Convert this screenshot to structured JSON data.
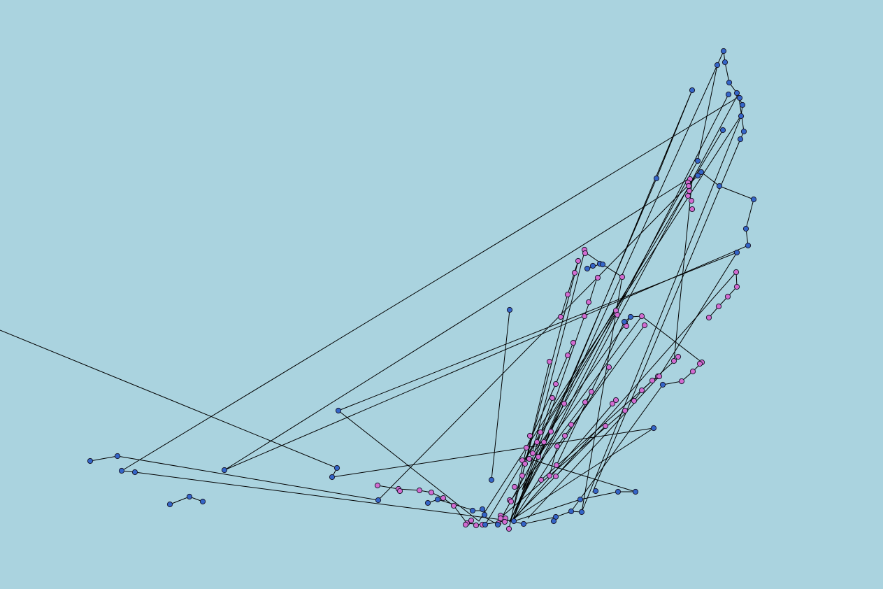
{
  "colors": {
    "background": "#aad3df",
    "edge": "#000000",
    "blue_node": "#3465c8",
    "pink_node": "#d26bd0"
  },
  "diagram": {
    "type": "node-link graph (map-like overlay)",
    "node_groups": [
      {
        "name": "blue",
        "color": "#3465c8"
      },
      {
        "name": "pink",
        "color": "#d26bd0"
      }
    ],
    "visible_text": []
  }
}
